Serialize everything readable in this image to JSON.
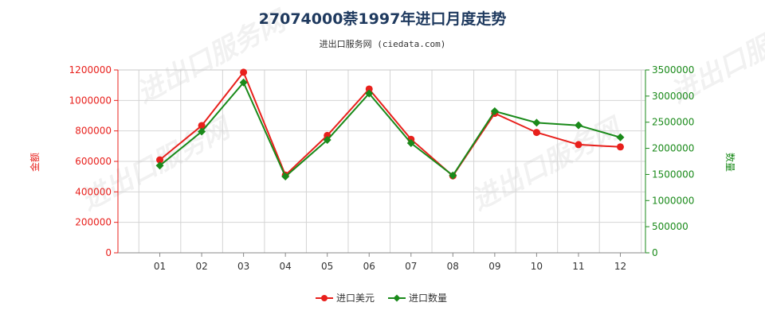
{
  "chart_data": {
    "type": "line",
    "title": "27074000萘1997年进口月度走势",
    "subtitle": "进出口服务网 (ciedata.com)",
    "categories": [
      "01",
      "02",
      "03",
      "04",
      "05",
      "06",
      "07",
      "08",
      "09",
      "10",
      "11",
      "12"
    ],
    "left_axis": {
      "label": "金额",
      "ylim": [
        0,
        1200000
      ],
      "ticks": [
        "0",
        "200000",
        "400000",
        "600000",
        "800000",
        "1000000",
        "1200000"
      ],
      "color": "#e8201c"
    },
    "right_axis": {
      "label": "数量",
      "ylim": [
        0,
        3500000
      ],
      "ticks": [
        "0",
        "500000",
        "1000000",
        "1500000",
        "2000000",
        "2500000",
        "3000000",
        "3500000"
      ],
      "color": "#1a8a1a"
    },
    "series": [
      {
        "name": "进口美元",
        "axis": "left",
        "color": "#e8201c",
        "values": [
          610000,
          835000,
          1185000,
          510000,
          770000,
          1075000,
          745000,
          505000,
          915000,
          790000,
          710000,
          695000
        ]
      },
      {
        "name": "进口数量",
        "axis": "right",
        "color": "#1a8a1a",
        "values": [
          1670000,
          2320000,
          3260000,
          1460000,
          2160000,
          3050000,
          2100000,
          1480000,
          2710000,
          2490000,
          2440000,
          2210000
        ]
      }
    ],
    "grid": true,
    "legend_position": "bottom-center",
    "watermark": "进出口服务网"
  }
}
